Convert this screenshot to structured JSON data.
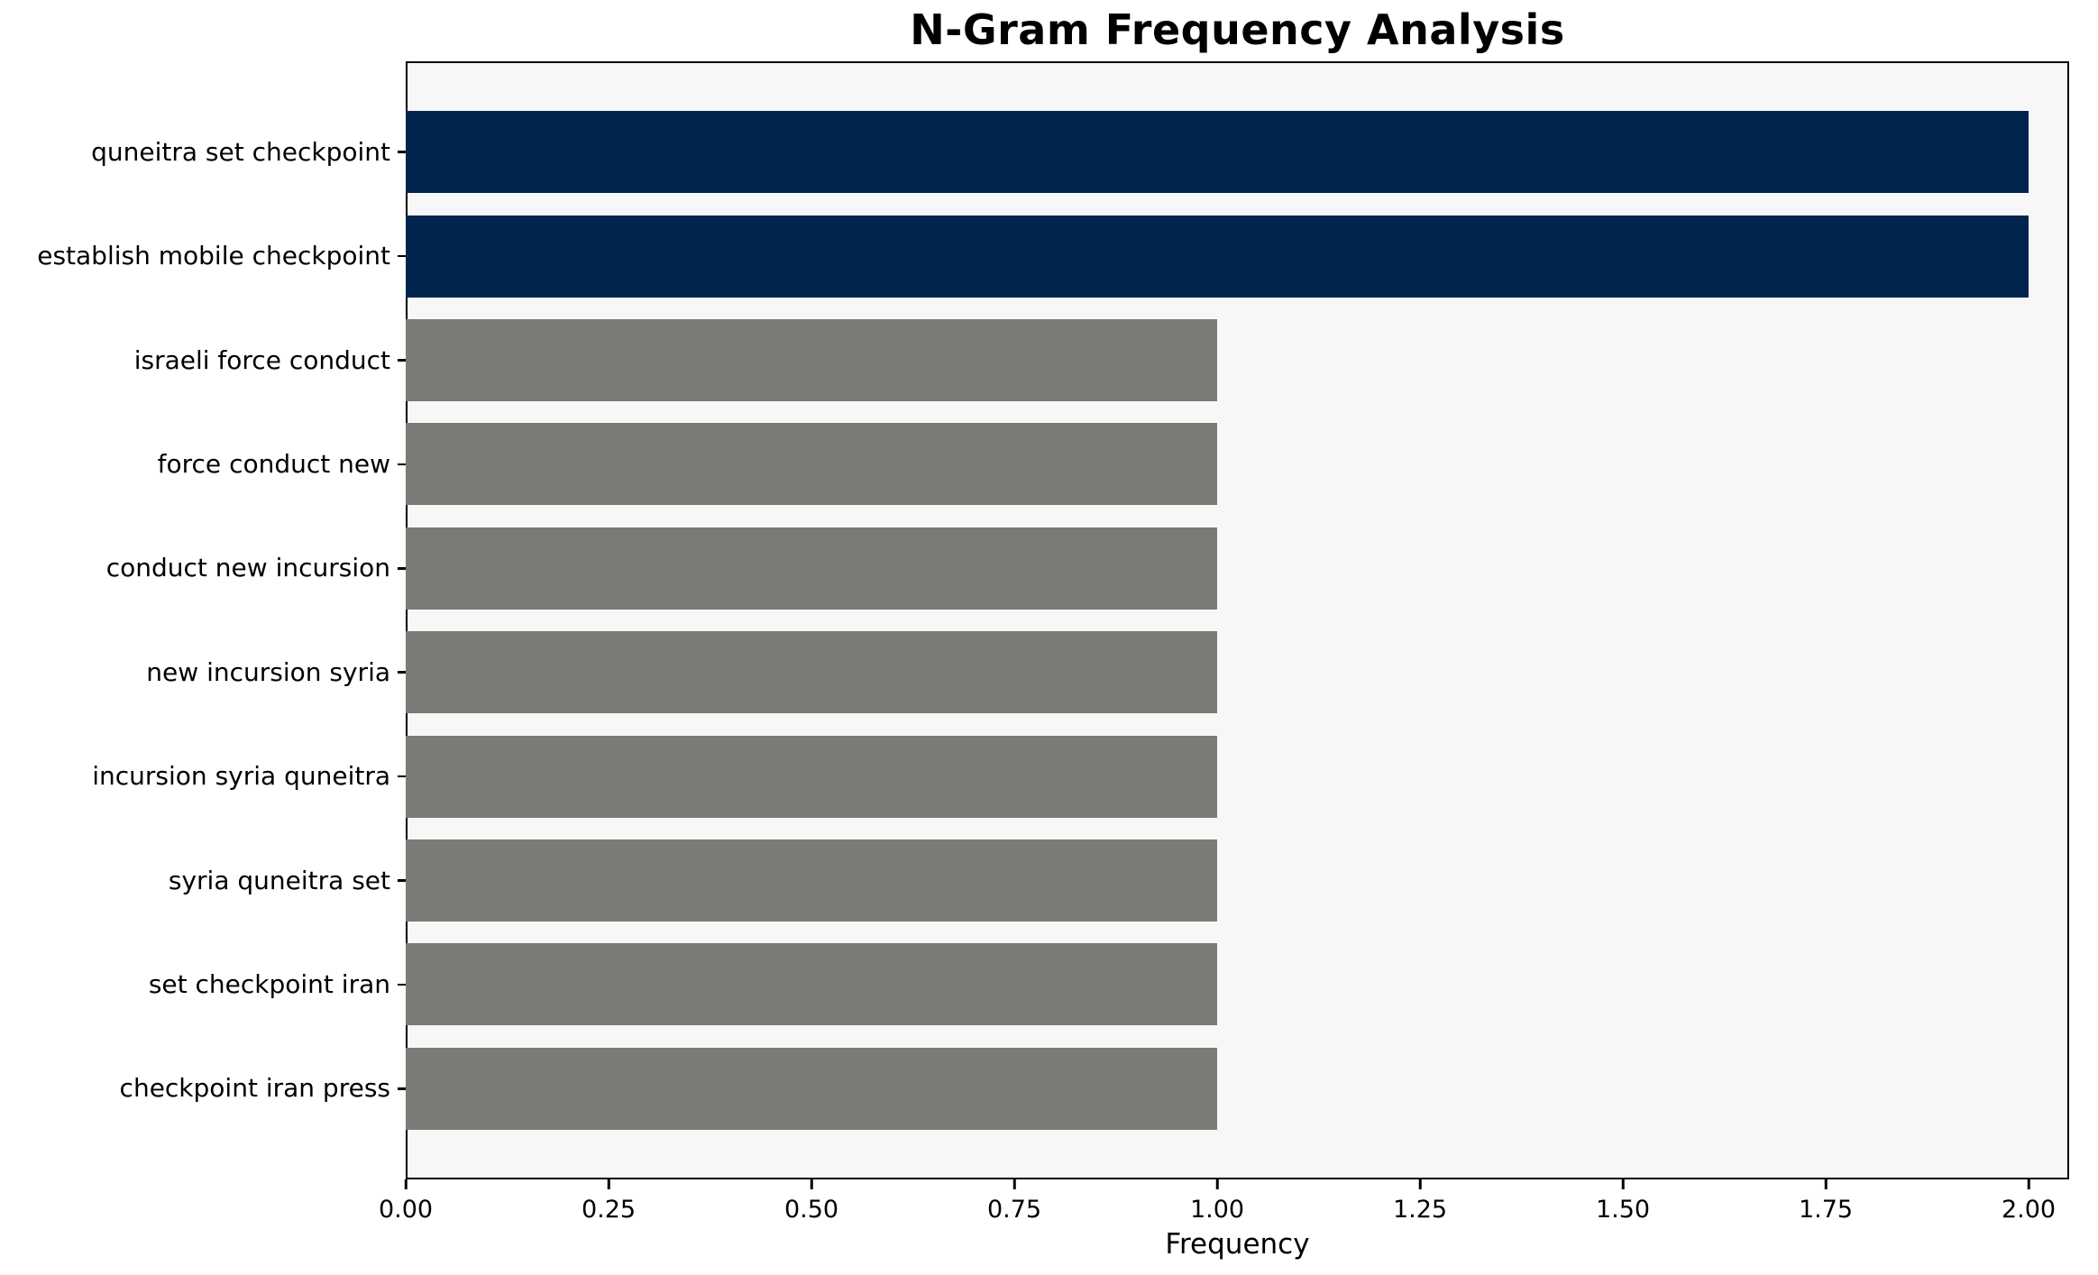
{
  "chart_data": {
    "type": "bar",
    "orientation": "horizontal",
    "title": "N-Gram Frequency Analysis",
    "xlabel": "Frequency",
    "ylabel": "",
    "categories": [
      "quneitra set checkpoint",
      "establish mobile checkpoint",
      "israeli force conduct",
      "force conduct new",
      "conduct new incursion",
      "new incursion syria",
      "incursion syria quneitra",
      "syria quneitra set",
      "set checkpoint iran",
      "checkpoint iran press"
    ],
    "values": [
      2,
      2,
      1,
      1,
      1,
      1,
      1,
      1,
      1,
      1
    ],
    "bar_colors": [
      "#02254E",
      "#02254E",
      "#7B7A77",
      "#7B7A77",
      "#7B7A77",
      "#7B7A77",
      "#7B7A77",
      "#7B7A77",
      "#7B7A77",
      "#7B7A77"
    ],
    "xlim": [
      0,
      2.05
    ],
    "xticks": [
      {
        "value": 0.0,
        "label": "0.00"
      },
      {
        "value": 0.25,
        "label": "0.25"
      },
      {
        "value": 0.5,
        "label": "0.50"
      },
      {
        "value": 0.75,
        "label": "0.75"
      },
      {
        "value": 1.0,
        "label": "1.00"
      },
      {
        "value": 1.25,
        "label": "1.25"
      },
      {
        "value": 1.5,
        "label": "1.50"
      },
      {
        "value": 1.75,
        "label": "1.75"
      },
      {
        "value": 2.0,
        "label": "2.00"
      }
    ],
    "grid": false,
    "legend": null,
    "colors": {
      "highlight_bar": "#02254E",
      "default_bar": "#7B7A77",
      "plot_background": "#F8F7F7",
      "figure_background": "#FFFFFF",
      "spine": "#000000",
      "text": "#000000"
    }
  }
}
